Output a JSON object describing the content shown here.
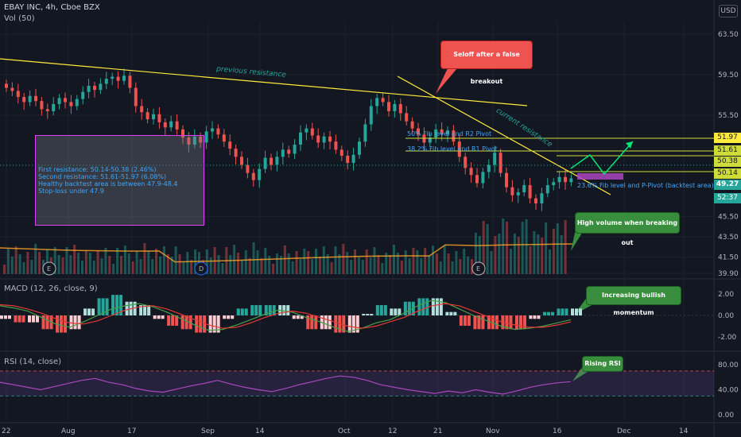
{
  "header": {
    "symbol_line": "EBAY INC, 4h, Cboe BZX",
    "volume_indicator": "Vol (50)",
    "currency_button": "USD",
    "macd_label": "MACD (12, 26, close, 9)",
    "rsi_label": "RSI (14, close)"
  },
  "colors": {
    "background": "#131722",
    "candle_up": "#26a69a",
    "candle_down": "#ef5350",
    "trendline": "#ffeb3b",
    "pivot_line": "#cddc39",
    "arrow": "#00e676",
    "rsi_line": "#ab47bc",
    "macd_line": "#43a047",
    "signal_line": "#e53935"
  },
  "annotations": {
    "previous_resistance": "previous resistance",
    "current_resistance": "current resistance",
    "fib_50": "50% Fib level and R2 Pivot",
    "fib_382": "38.2% Fib level and R1 Pivot",
    "fib_236": "23.6% Fib level and P-Pivot (backtest area)",
    "info_box": [
      "First resistance: 50.14-50.38 (2.46%)",
      "Second resistance: 51.61-51.97 (6.08%)",
      "Healthy backtest area is between 47.9-48.4",
      "Stop-loss under 47.9"
    ],
    "callouts": {
      "selloff": "Seloff after a false breakout",
      "high_volume": "High volume when breaking out",
      "bullish_momentum": "Increasing bullish momentum",
      "rising_rsi": "Rising RSI"
    },
    "earnings_markers": [
      "E",
      "D",
      "E"
    ]
  },
  "chart_data": [
    {
      "type": "candlestick",
      "title": "EBAY INC, 4h, Cboe BZX",
      "y_ticks": [
        "63.50",
        "59.50",
        "55.50",
        "51.97",
        "51.61",
        "50.38",
        "50.14",
        "49.27",
        "52:37",
        "45.50",
        "43.50",
        "41.50",
        "39.90"
      ],
      "price_tags": [
        {
          "label": "51.97",
          "value": 51.97,
          "style": "yellow"
        },
        {
          "label": "51.61",
          "value": 51.61,
          "style": "yellow"
        },
        {
          "label": "50.38",
          "value": 50.38,
          "style": "yellow"
        },
        {
          "label": "50.14",
          "value": 50.14,
          "style": "yellow"
        },
        {
          "label": "49.27",
          "value": 49.27,
          "style": "green"
        },
        {
          "label": "52:37",
          "value": 48.3,
          "style": "green"
        }
      ],
      "x_ticks": [
        "22",
        "Aug",
        "17",
        "Sep",
        "14",
        "Oct",
        "12",
        "21",
        "Nov",
        "16",
        "Dec",
        "14"
      ],
      "close_series": [
        58.2,
        57.9,
        57.3,
        56.8,
        57.4,
        56.9,
        56.1,
        55.9,
        56.6,
        57.2,
        56.8,
        56.4,
        57.1,
        57.8,
        58.4,
        58.0,
        58.6,
        59.1,
        59.3,
        58.9,
        59.4,
        58.2,
        56.4,
        55.8,
        55.1,
        55.6,
        54.8,
        54.3,
        54.9,
        54.1,
        53.3,
        52.6,
        53.4,
        52.8,
        53.9,
        54.2,
        53.6,
        52.9,
        52.2,
        51.4,
        50.6,
        49.8,
        49.1,
        50.2,
        51.3,
        50.6,
        51.4,
        52.1,
        51.7,
        52.6,
        53.8,
        54.2,
        53.5,
        52.8,
        53.4,
        52.9,
        52.1,
        51.5,
        50.8,
        51.6,
        52.9,
        54.6,
        56.4,
        57.2,
        56.8,
        55.9,
        56.6,
        55.7,
        54.9,
        54.2,
        53.6,
        52.8,
        53.3,
        54.1,
        53.6,
        54.0,
        52.9,
        51.4,
        50.3,
        49.6,
        48.8,
        49.9,
        50.6,
        51.8,
        49.8,
        48.4,
        47.6,
        47.9,
        48.6,
        47.3,
        46.8,
        47.8,
        48.6,
        48.9,
        49.4,
        48.9,
        49.27
      ],
      "volume_ma_note": "Vol (50)"
    },
    {
      "type": "bar",
      "title": "MACD (12, 26, close, 9)",
      "y_ticks": [
        "2.00",
        "0.00",
        "-2.00"
      ],
      "ylim": [
        -2.8,
        2.8
      ],
      "series": [
        {
          "name": "MACD",
          "values": [
            0.9,
            0.7,
            0.4,
            -0.2,
            -0.8,
            -1.1,
            -0.6,
            0.0,
            0.6,
            0.9,
            1.1,
            0.8,
            0.3,
            -0.3,
            -0.9,
            -1.4,
            -1.3,
            -0.9,
            -0.4,
            0.1,
            0.5,
            0.3,
            -0.2,
            -0.6,
            -1.1,
            -1.5,
            -1.2,
            -0.7,
            -0.4,
            0.2,
            0.9,
            1.4,
            1.2,
            0.6,
            0.0,
            -0.5,
            -1.0,
            -1.3,
            -1.2,
            -1.0,
            -0.7,
            -0.4
          ]
        },
        {
          "name": "Signal",
          "values": [
            1.0,
            0.9,
            0.6,
            0.2,
            -0.3,
            -0.7,
            -0.8,
            -0.5,
            0.0,
            0.5,
            0.8,
            0.9,
            0.6,
            0.1,
            -0.4,
            -0.9,
            -1.2,
            -1.1,
            -0.7,
            -0.2,
            0.2,
            0.4,
            0.2,
            -0.2,
            -0.6,
            -1.0,
            -1.2,
            -1.0,
            -0.6,
            -0.2,
            0.4,
            0.9,
            1.1,
            0.9,
            0.4,
            -0.1,
            -0.6,
            -0.9,
            -1.1,
            -1.1,
            -0.9,
            -0.6
          ]
        }
      ]
    },
    {
      "type": "line",
      "title": "RSI (14, close)",
      "y_ticks": [
        "80.00",
        "40.00",
        "0.00"
      ],
      "ylim": [
        0,
        100
      ],
      "bands": [
        70,
        30
      ],
      "series": [
        {
          "name": "RSI",
          "values": [
            52,
            48,
            44,
            40,
            45,
            50,
            55,
            58,
            52,
            48,
            42,
            38,
            36,
            41,
            46,
            50,
            55,
            49,
            44,
            40,
            37,
            42,
            48,
            53,
            58,
            62,
            60,
            55,
            48,
            44,
            40,
            37,
            34,
            38,
            35,
            40,
            36,
            33,
            38,
            44,
            48,
            51,
            53
          ]
        }
      ]
    }
  ]
}
